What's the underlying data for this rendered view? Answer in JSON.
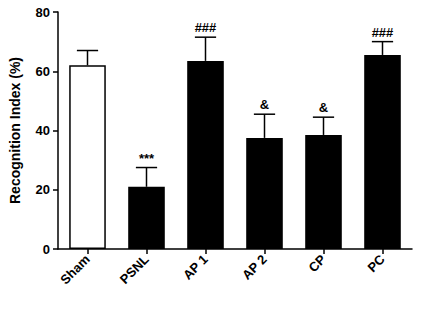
{
  "chart_data": {
    "type": "bar",
    "y_label": "Recognition Index (%)",
    "categories": [
      "Sham",
      "PSNL",
      "AP 1",
      "AP 2",
      "CP",
      "PC"
    ],
    "values": [
      62,
      21,
      63.5,
      37.5,
      38.5,
      65.5
    ],
    "errors": [
      5,
      6.5,
      8,
      8,
      6,
      4.5
    ],
    "annotations": [
      null,
      "***",
      "###",
      "&",
      "&",
      "###"
    ],
    "colors": [
      "#ffffff",
      "#000000",
      "#000000",
      "#000000",
      "#000000",
      "#000000"
    ],
    "ylim": [
      0,
      80
    ],
    "yticks": [
      0,
      20,
      40,
      60,
      80
    ],
    "grid": false
  }
}
